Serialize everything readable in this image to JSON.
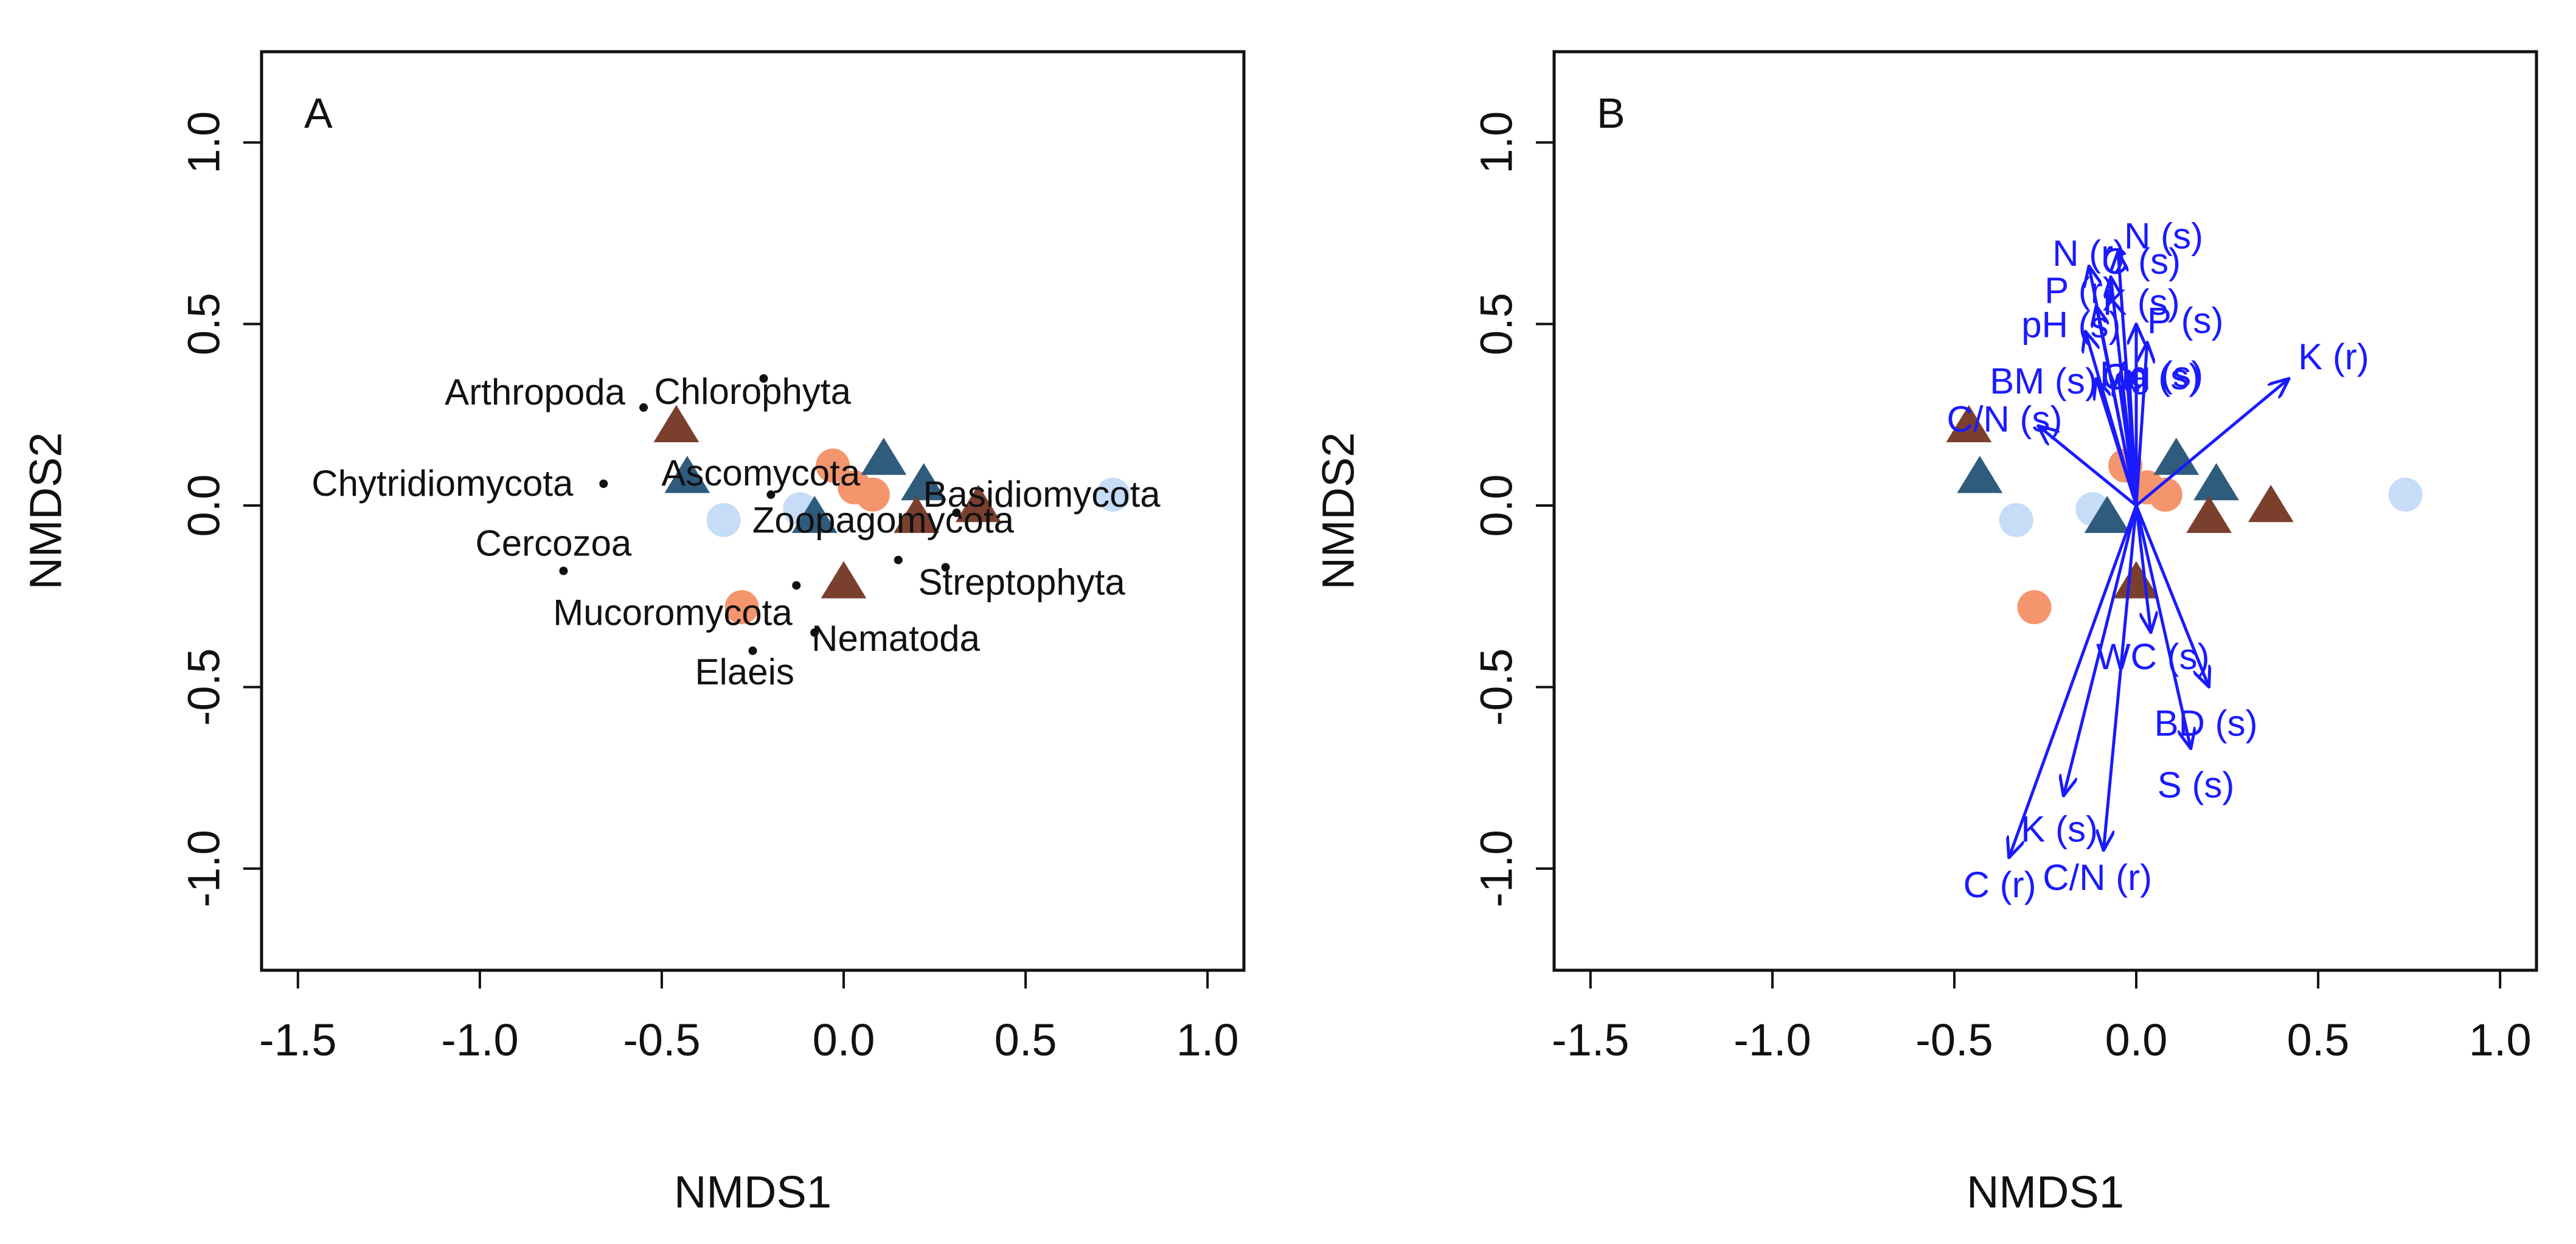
{
  "chart_data": [
    {
      "type": "scatter",
      "panel_label": "A",
      "xlabel": "NMDS1",
      "ylabel": "NMDS2",
      "xlim": [
        -1.6,
        1.1
      ],
      "ylim": [
        -1.28,
        1.25
      ],
      "xticks": [
        -1.5,
        -1.0,
        -0.5,
        0.0,
        0.5,
        1.0
      ],
      "xtick_labels": [
        "-1.5",
        "-1.0",
        "-0.5",
        "0.0",
        "0.5",
        "1.0"
      ],
      "yticks": [
        -1.0,
        -0.5,
        0.0,
        0.5,
        1.0
      ],
      "ytick_labels": [
        "-1.0",
        "-0.5",
        "0.0",
        "0.5",
        "1.0"
      ],
      "sample_groups": [
        {
          "name": "light-blue circles",
          "shape": "circle",
          "color": "#c6dcf7",
          "x": [
            -0.33,
            -0.12,
            0.74
          ],
          "y": [
            -0.04,
            -0.01,
            0.03
          ]
        },
        {
          "name": "salmon circles",
          "shape": "circle",
          "color": "#f4956d",
          "x": [
            -0.28,
            -0.03,
            0.03,
            0.08
          ],
          "y": [
            -0.28,
            0.11,
            0.05,
            0.03
          ]
        },
        {
          "name": "dark-blue triangles",
          "shape": "triangle",
          "color": "#2f5b7c",
          "x": [
            -0.43,
            -0.08,
            0.11,
            0.22
          ],
          "y": [
            0.08,
            -0.03,
            0.13,
            0.06
          ]
        },
        {
          "name": "brown triangles",
          "shape": "triangle",
          "color": "#7b3f2e",
          "x": [
            -0.46,
            0.0,
            0.2,
            0.37
          ],
          "y": [
            0.22,
            -0.21,
            -0.03,
            0.0
          ]
        }
      ],
      "species": [
        {
          "name": "Arthropoda",
          "x": -0.55,
          "y": 0.27
        },
        {
          "name": "Chlorophyta",
          "x": -0.22,
          "y": 0.35
        },
        {
          "name": "Chytridiomycota",
          "x": -0.66,
          "y": 0.06
        },
        {
          "name": "Ascomycota",
          "x": -0.2,
          "y": 0.03
        },
        {
          "name": "Basidiomycota",
          "x": 0.31,
          "y": -0.02
        },
        {
          "name": "Zoopagomycota",
          "x": 0.15,
          "y": -0.15
        },
        {
          "name": "Cercozoa",
          "x": -0.77,
          "y": -0.18
        },
        {
          "name": "Streptophyta",
          "x": 0.28,
          "y": -0.17
        },
        {
          "name": "Mucoromycota",
          "x": -0.13,
          "y": -0.22
        },
        {
          "name": "Nematoda",
          "x": -0.08,
          "y": -0.35
        },
        {
          "name": "Elaeis",
          "x": -0.25,
          "y": -0.4
        }
      ]
    },
    {
      "type": "scatter",
      "panel_label": "B",
      "xlabel": "NMDS1",
      "ylabel": "NMDS2",
      "xlim": [
        -1.6,
        1.1
      ],
      "ylim": [
        -1.28,
        1.25
      ],
      "xticks": [
        -1.5,
        -1.0,
        -0.5,
        0.0,
        0.5,
        1.0
      ],
      "xtick_labels": [
        "-1.5",
        "-1.0",
        "-0.5",
        "0.0",
        "0.5",
        "1.0"
      ],
      "yticks": [
        -1.0,
        -0.5,
        0.0,
        0.5,
        1.0
      ],
      "ytick_labels": [
        "-1.0",
        "-0.5",
        "0.0",
        "0.5",
        "1.0"
      ],
      "sample_groups": [
        {
          "name": "light-blue circles",
          "shape": "circle",
          "color": "#c6dcf7",
          "x": [
            -0.33,
            -0.12,
            0.74
          ],
          "y": [
            -0.04,
            -0.01,
            0.03
          ]
        },
        {
          "name": "salmon circles",
          "shape": "circle",
          "color": "#f4956d",
          "x": [
            -0.28,
            -0.03,
            0.03,
            0.08
          ],
          "y": [
            -0.28,
            0.11,
            0.05,
            0.03
          ]
        },
        {
          "name": "dark-blue triangles",
          "shape": "triangle",
          "color": "#2f5b7c",
          "x": [
            -0.43,
            -0.08,
            0.11,
            0.22
          ],
          "y": [
            0.08,
            -0.03,
            0.13,
            0.06
          ]
        },
        {
          "name": "brown triangles",
          "shape": "triangle",
          "color": "#7b3f2e",
          "x": [
            -0.46,
            0.0,
            0.2,
            0.37
          ],
          "y": [
            0.22,
            -0.21,
            -0.03,
            0.0
          ]
        }
      ],
      "vector_color": "#1a1aff",
      "vectors": [
        {
          "label": "N (s)",
          "x": -0.05,
          "y": 0.7
        },
        {
          "label": "N (r)",
          "x": -0.13,
          "y": 0.66
        },
        {
          "label": "C (s)",
          "x": -0.07,
          "y": 0.63
        },
        {
          "label": "P (r)",
          "x": -0.11,
          "y": 0.55
        },
        {
          "label": "pH (s)",
          "x": -0.14,
          "y": 0.48
        },
        {
          "label": "K (s)",
          "x": 0.0,
          "y": 0.5
        },
        {
          "label": "P (s)",
          "x": 0.03,
          "y": 0.45
        },
        {
          "label": "BM (s)",
          "x": -0.11,
          "y": 0.35
        },
        {
          "label": "Mg (s)",
          "x": -0.05,
          "y": 0.36
        },
        {
          "label": "Ca (s)",
          "x": -0.02,
          "y": 0.37
        },
        {
          "label": "C/N (s)",
          "x": -0.27,
          "y": 0.22
        },
        {
          "label": "K (r)",
          "x": 0.42,
          "y": 0.35
        },
        {
          "label": "WC (s)",
          "x": 0.04,
          "y": -0.35
        },
        {
          "label": "BD (s)",
          "x": 0.2,
          "y": -0.5
        },
        {
          "label": "S (s)",
          "x": 0.15,
          "y": -0.67
        },
        {
          "label": "K (s)",
          "x": -0.2,
          "y": -0.8
        },
        {
          "label": "C/N (r)",
          "x": -0.09,
          "y": -0.95
        },
        {
          "label": "C (r)",
          "x": -0.35,
          "y": -0.97
        }
      ]
    }
  ]
}
